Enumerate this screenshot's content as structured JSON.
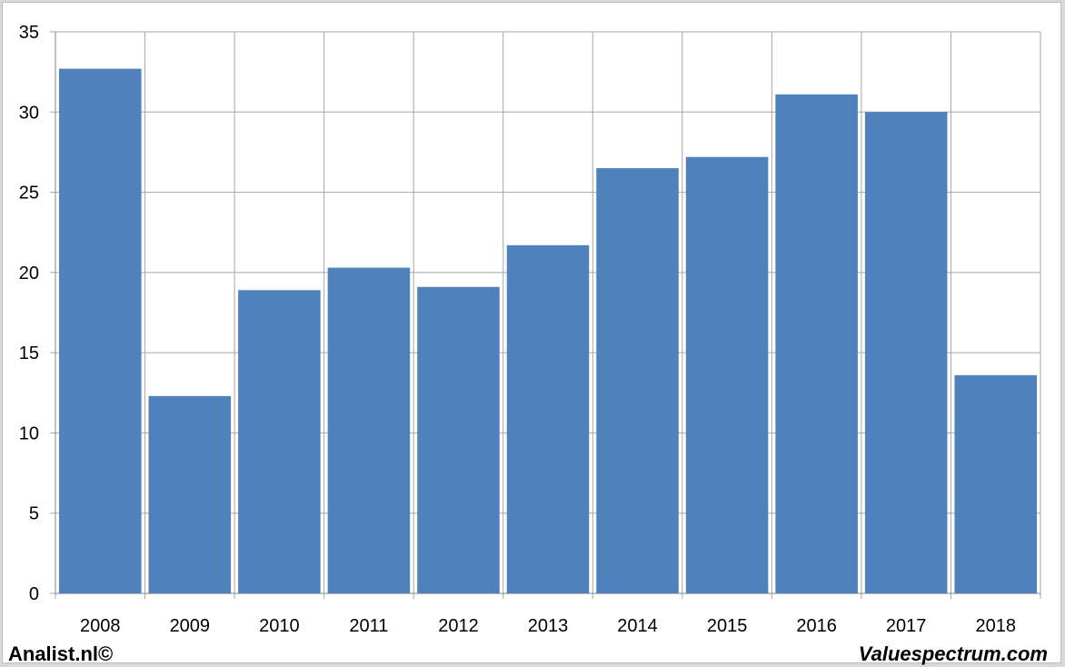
{
  "chart_data": {
    "type": "bar",
    "categories": [
      "2008",
      "2009",
      "2010",
      "2011",
      "2012",
      "2013",
      "2014",
      "2015",
      "2016",
      "2017",
      "2018"
    ],
    "values": [
      32.7,
      12.3,
      18.9,
      20.3,
      19.1,
      21.7,
      26.5,
      27.2,
      31.1,
      30.0,
      13.6
    ],
    "ylim": [
      0,
      35
    ],
    "yticks": [
      0,
      5,
      10,
      15,
      20,
      25,
      30,
      35
    ],
    "grid": true,
    "title": "",
    "xlabel": "",
    "ylabel": "",
    "bar_color": "#4f81bd",
    "grid_color": "#a6a6a6"
  },
  "footer": {
    "left": "Analist.nl©",
    "right": "Valuespectrum.com"
  }
}
